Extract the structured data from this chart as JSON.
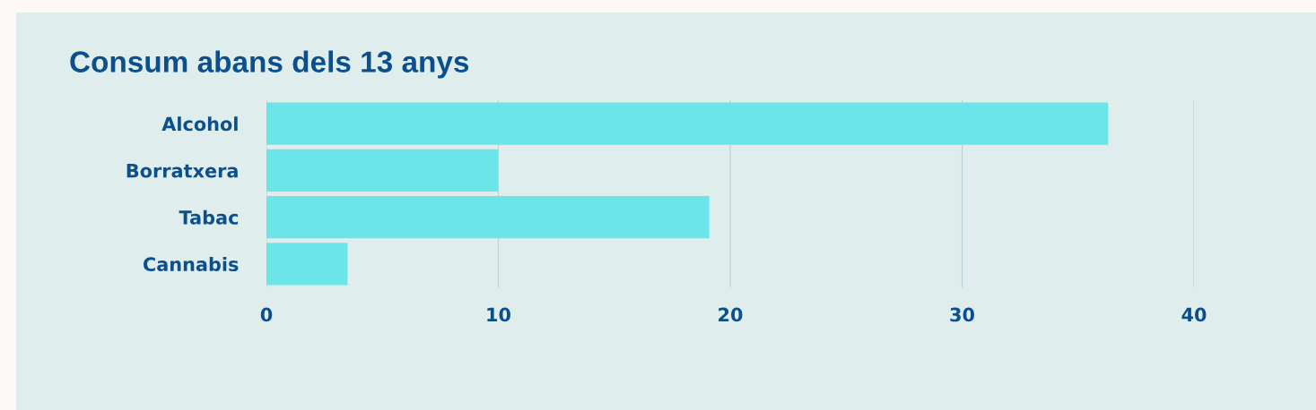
{
  "chart_data": {
    "type": "bar",
    "orientation": "horizontal",
    "title": "Consum abans dels 13 anys",
    "categories": [
      "Alcohol",
      "Borratxera",
      "Tabac",
      "Cannabis"
    ],
    "values": [
      36.3,
      10.0,
      19.1,
      3.5
    ],
    "color": "#6ce5e9",
    "xlim": [
      0,
      40
    ],
    "xticks": [
      0,
      10,
      20,
      30,
      40
    ],
    "grid": "x"
  }
}
